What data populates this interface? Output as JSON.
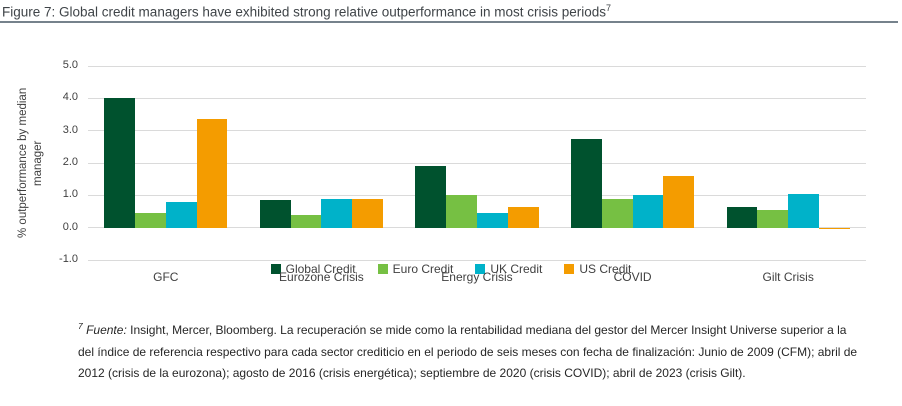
{
  "figure": {
    "title": "Figure 7: Global credit managers have exhibited strong relative outperformance in most crisis periods",
    "title_superscript": "7"
  },
  "chart_data": {
    "type": "bar",
    "title": "",
    "categories": [
      "GFC",
      "Eurozone Crisis",
      "Energy Crisis",
      "COVID",
      "Gilt Crisis"
    ],
    "series": [
      {
        "name": "Global Credit",
        "color": "#00522E",
        "values": [
          4.0,
          0.85,
          1.9,
          2.75,
          0.65
        ]
      },
      {
        "name": "Euro Credit",
        "color": "#76C043",
        "values": [
          0.45,
          0.4,
          1.0,
          0.9,
          0.55
        ]
      },
      {
        "name": "UK Credit",
        "color": "#00B2C9",
        "values": [
          0.8,
          0.9,
          0.45,
          1.0,
          1.05
        ]
      },
      {
        "name": "US Credit",
        "color": "#F49C00",
        "values": [
          3.35,
          0.9,
          0.65,
          1.6,
          -0.05
        ]
      }
    ],
    "xlabel": "",
    "ylabel": "% outperformance by median manager",
    "yticks": [
      "5.0",
      "4.0",
      "3.0",
      "2.0",
      "1.0",
      "0.0",
      "-1.0"
    ],
    "ylim": [
      -1.0,
      5.0
    ],
    "grid": true,
    "gridline_color": "#dadada",
    "legend_position": "bottom"
  },
  "footnote": {
    "superscript": "7",
    "source_label": "Fuente:",
    "text": " Insight, Mercer, Bloomberg. La recuperación se mide como la rentabilidad mediana del gestor del Mercer Insight Universe superior a la del índice de referencia respectivo para cada sector crediticio en el periodo de seis meses con fecha de finalización: Junio de 2009 (CFM); abril de 2012 (crisis de la eurozona); agosto de 2016 (crisis energética); septiembre de 2020 (crisis COVID); abril de 2023 (crisis Gilt)."
  },
  "theme": {
    "title_color": "#3f4448",
    "rule_color": "#76828c",
    "text_color": "#404040",
    "footnote_color": "#262626"
  }
}
